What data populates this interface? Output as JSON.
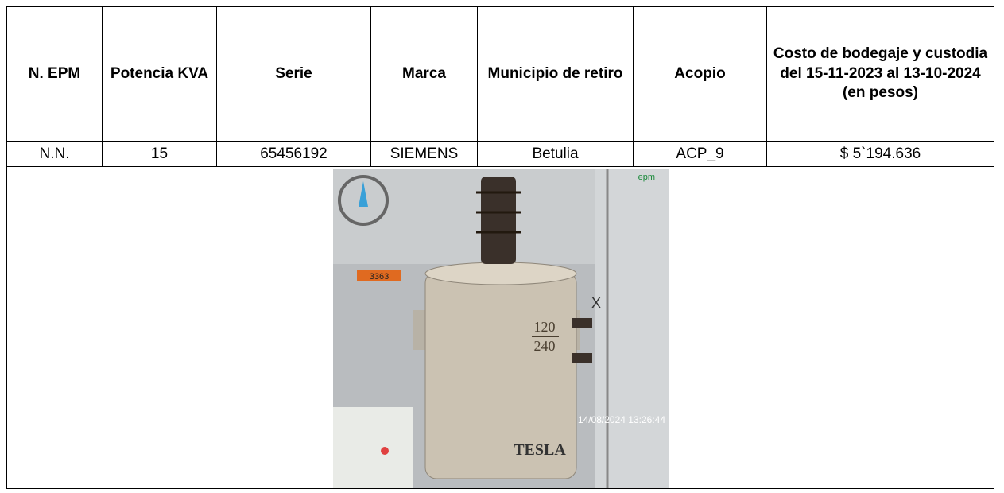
{
  "table": {
    "header": [
      "N. EPM",
      "Potencia KVA",
      "Serie",
      "Marca",
      "Municipio de retiro",
      "Acopio",
      "Costo de bodegaje y custodia del 15-11-2023 al 13-10-2024 (en pesos)"
    ],
    "rows": [
      [
        "N.N.",
        "15",
        "65456192",
        "SIEMENS",
        "Betulia",
        "ACP_9",
        "$ 5`194.636"
      ]
    ]
  },
  "photo": {
    "logo": "epm",
    "tag": "3363",
    "voltage_top": "120",
    "voltage_bottom": "240",
    "mark": "X",
    "brand": "TESLA",
    "timestamp": "14/08/2024 13:26:44"
  }
}
